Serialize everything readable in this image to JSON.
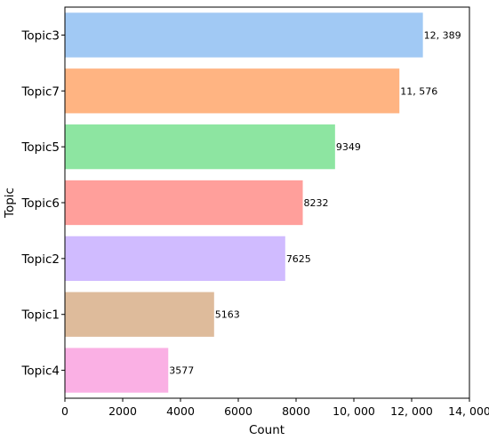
{
  "chart_data": {
    "type": "bar",
    "orientation": "horizontal",
    "xlabel": "Count",
    "ylabel": "Topic",
    "xlim": [
      0,
      14000
    ],
    "x_ticks": [
      0,
      2000,
      4000,
      6000,
      8000,
      10000,
      12000,
      14000
    ],
    "x_tick_labels": [
      "0",
      "2000",
      "4000",
      "6000",
      "8000",
      "10, 000",
      "12, 000",
      "14, 000"
    ],
    "grid": false,
    "categories": [
      "Topic3",
      "Topic7",
      "Topic5",
      "Topic6",
      "Topic2",
      "Topic1",
      "Topic4"
    ],
    "values": [
      12389,
      11576,
      9349,
      8232,
      7625,
      5163,
      3577
    ],
    "data_labels": [
      "12, 389",
      "11, 576",
      "9349",
      "8232",
      "7625",
      "5163",
      "3577"
    ],
    "colors": [
      "#a1c9f4",
      "#ffb482",
      "#8de5a1",
      "#ff9f9b",
      "#d0bbff",
      "#debb9b",
      "#fab0e4"
    ]
  }
}
